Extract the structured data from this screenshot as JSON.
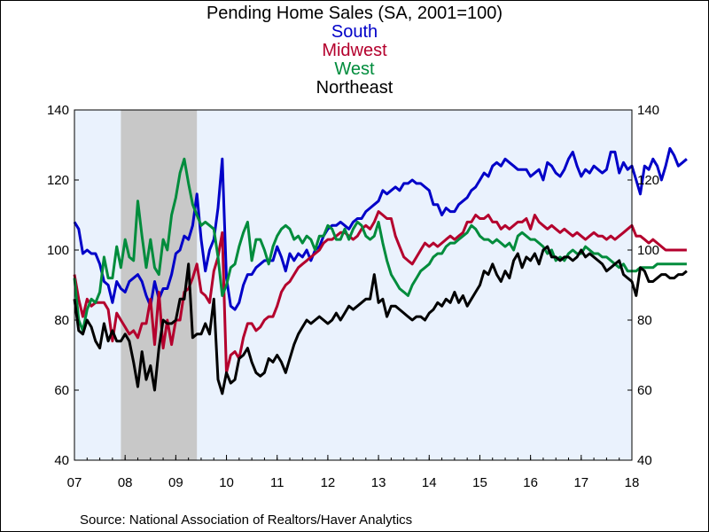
{
  "chart_data": {
    "type": "line",
    "title": "Pending Home Sales (SA, 2001=100)",
    "source": "Source:  National Association of Realtors/Haver Analytics",
    "x_start": "2007-01",
    "x_end": "2018-01",
    "x_tick_labels": [
      "07",
      "08",
      "09",
      "10",
      "11",
      "12",
      "13",
      "14",
      "15",
      "16",
      "17",
      "18"
    ],
    "ylim": [
      40,
      140
    ],
    "y_ticks": [
      40,
      60,
      80,
      100,
      120,
      140
    ],
    "y_axes": "both",
    "recession_shading": {
      "start": "2007-12",
      "end": "2009-06",
      "color": "#c8c8c8"
    },
    "plot_background": "#eaf2fd",
    "series": [
      {
        "name": "South",
        "color": "#0000c8",
        "values": [
          108,
          106,
          99,
          100,
          99,
          99,
          96,
          91,
          90,
          85,
          91,
          89,
          88,
          91,
          92,
          93,
          91,
          87,
          84,
          91,
          86,
          89,
          89,
          93,
          99,
          100,
          104,
          103,
          107,
          116,
          103,
          94,
          100,
          103,
          112,
          126,
          92,
          84,
          83,
          85,
          90,
          93,
          93,
          95,
          96,
          97,
          97,
          97,
          101,
          98,
          94,
          99,
          97,
          99,
          98,
          100,
          97,
          100,
          101,
          104,
          106,
          107,
          107,
          108,
          107,
          106,
          108,
          109,
          109,
          111,
          112,
          113,
          114,
          117,
          116,
          117,
          118,
          117,
          119,
          119,
          120,
          119,
          119,
          118,
          117,
          113,
          113,
          110,
          112,
          111,
          111,
          113,
          114,
          115,
          117,
          118,
          120,
          122,
          121,
          124,
          125,
          124,
          126,
          125,
          124,
          123,
          123,
          123,
          121,
          122,
          123,
          120,
          125,
          124,
          122,
          121,
          123,
          126,
          128,
          124,
          121,
          123,
          122,
          124,
          123,
          122,
          123,
          128,
          128,
          122,
          125,
          123,
          124,
          120,
          116,
          124,
          123,
          126,
          124,
          120,
          124,
          129,
          127,
          124,
          125,
          126
        ]
      },
      {
        "name": "Midwest",
        "color": "#b4002d",
        "values": [
          93,
          86,
          81,
          86,
          84,
          85,
          85,
          85,
          83,
          74,
          82,
          80,
          78,
          76,
          77,
          75,
          79,
          79,
          86,
          73,
          88,
          72,
          80,
          73,
          80,
          80,
          88,
          89,
          92,
          96,
          88,
          87,
          85,
          94,
          98,
          105,
          65,
          70,
          71,
          69,
          75,
          79,
          79,
          77,
          78,
          80,
          81,
          81,
          84,
          88,
          90,
          91,
          93,
          95,
          96,
          97,
          98,
          99,
          100,
          102,
          103,
          103,
          104,
          105,
          105,
          104,
          103,
          104,
          106,
          107,
          106,
          108,
          111,
          110,
          109,
          109,
          104,
          101,
          98,
          97,
          96,
          98,
          100,
          102,
          101,
          102,
          101,
          102,
          103,
          104,
          103,
          104,
          105,
          108,
          108,
          110,
          109,
          109,
          110,
          108,
          108,
          106,
          107,
          106,
          107,
          108,
          108,
          109,
          106,
          110,
          108,
          107,
          106,
          107,
          106,
          105,
          106,
          105,
          104,
          105,
          104,
          103,
          104,
          105,
          104,
          104,
          103,
          104,
          103,
          104,
          105,
          106,
          107,
          104,
          104,
          103,
          102,
          103,
          102,
          101,
          100,
          100,
          100,
          100,
          100,
          100
        ]
      },
      {
        "name": "West",
        "color": "#008c3c",
        "values": [
          92,
          80,
          77,
          83,
          86,
          85,
          88,
          98,
          92,
          92,
          101,
          95,
          103,
          98,
          97,
          114,
          104,
          95,
          103,
          95,
          93,
          103,
          100,
          110,
          115,
          122,
          126,
          119,
          113,
          110,
          107,
          108,
          107,
          106,
          98,
          87,
          90,
          95,
          96,
          101,
          105,
          108,
          97,
          103,
          103,
          100,
          96,
          101,
          104,
          106,
          107,
          106,
          103,
          104,
          102,
          104,
          103,
          100,
          104,
          104,
          107,
          106,
          103,
          103,
          106,
          103,
          106,
          108,
          107,
          104,
          103,
          104,
          108,
          102,
          97,
          93,
          91,
          89,
          88,
          87,
          90,
          92,
          94,
          95,
          96,
          98,
          99,
          99,
          101,
          102,
          102,
          103,
          104,
          105,
          107,
          106,
          104,
          103,
          103,
          102,
          103,
          102,
          101,
          102,
          100,
          104,
          105,
          104,
          103,
          103,
          102,
          101,
          99,
          100,
          97,
          98,
          97,
          99,
          100,
          99,
          99,
          101,
          100,
          99,
          99,
          98,
          98,
          97,
          96,
          95,
          96,
          94,
          94,
          94,
          95,
          95,
          95,
          95,
          96,
          96,
          96,
          96,
          96,
          96,
          96,
          96
        ]
      },
      {
        "name": "Northeast",
        "color": "#000000",
        "values": [
          86,
          77,
          76,
          80,
          78,
          74,
          72,
          79,
          74,
          77,
          74,
          74,
          76,
          74,
          68,
          61,
          71,
          63,
          67,
          60,
          72,
          80,
          79,
          79,
          80,
          86,
          86,
          96,
          75,
          76,
          76,
          79,
          76,
          86,
          63,
          59,
          65,
          62,
          63,
          69,
          70,
          72,
          68,
          65,
          64,
          65,
          69,
          68,
          70,
          68,
          65,
          69,
          73,
          76,
          78,
          80,
          79,
          80,
          81,
          80,
          79,
          80,
          82,
          80,
          82,
          84,
          83,
          84,
          85,
          86,
          86,
          93,
          85,
          86,
          81,
          84,
          84,
          83,
          82,
          81,
          80,
          81,
          81,
          80,
          82,
          83,
          85,
          84,
          86,
          85,
          88,
          85,
          87,
          84,
          86,
          88,
          90,
          94,
          93,
          96,
          93,
          91,
          94,
          92,
          97,
          99,
          95,
          98,
          97,
          99,
          96,
          100,
          101,
          98,
          98,
          97,
          98,
          98,
          97,
          98,
          100,
          98,
          99,
          98,
          97,
          96,
          94,
          95,
          96,
          97,
          93,
          92,
          91,
          87,
          95,
          94,
          91,
          91,
          92,
          93,
          93,
          92,
          92,
          93,
          93,
          94
        ]
      }
    ]
  }
}
